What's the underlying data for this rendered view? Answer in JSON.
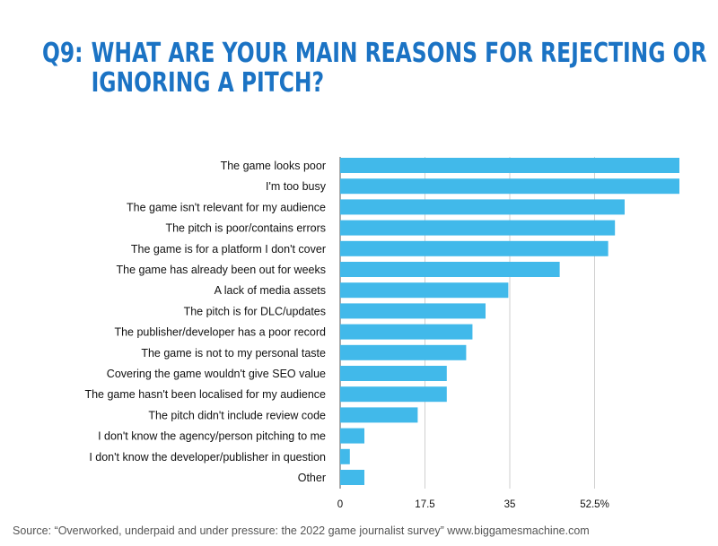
{
  "title": {
    "qnum": "Q9:",
    "line1": "WHAT ARE YOUR MAIN REASONS FOR REJECTING OR",
    "line2": "IGNORING A PITCH?"
  },
  "source": "Source: “Overworked, underpaid and under pressure: the 2022 game journalist survey” www.biggamesmachine.com",
  "colors": {
    "bar": "#41b9ea",
    "grid": "#cfcfcf",
    "title": "#1b73c4"
  },
  "chart_data": {
    "type": "bar",
    "orientation": "horizontal",
    "categories": [
      "The game looks poor",
      "I'm too busy",
      "The game isn't relevant for my audience",
      "The pitch is poor/contains errors",
      "The game is for a platform I don't cover",
      "The game has already been out for weeks",
      "A lack of media assets",
      "The pitch is for DLC/updates",
      "The publisher/developer has a poor record",
      "The game is not to my personal taste",
      "Covering the game wouldn't give SEO value",
      "The game hasn't been localised for my audience",
      "The pitch didn't include review code",
      "I don't know the agency/person pitching to me",
      "I don't know the developer/publisher in question",
      "Other"
    ],
    "values": [
      70,
      70,
      58.7,
      56.7,
      55.3,
      45.3,
      34.7,
      30,
      27.3,
      26,
      22,
      22,
      16,
      5,
      2,
      5
    ],
    "xlim": [
      0,
      70
    ],
    "xticks": [
      0,
      17.5,
      35,
      52.5
    ],
    "xtick_labels": [
      "0",
      "17.5",
      "35",
      "52.5%"
    ],
    "xlabel": "",
    "ylabel": "",
    "legend": "none",
    "grid": true
  }
}
